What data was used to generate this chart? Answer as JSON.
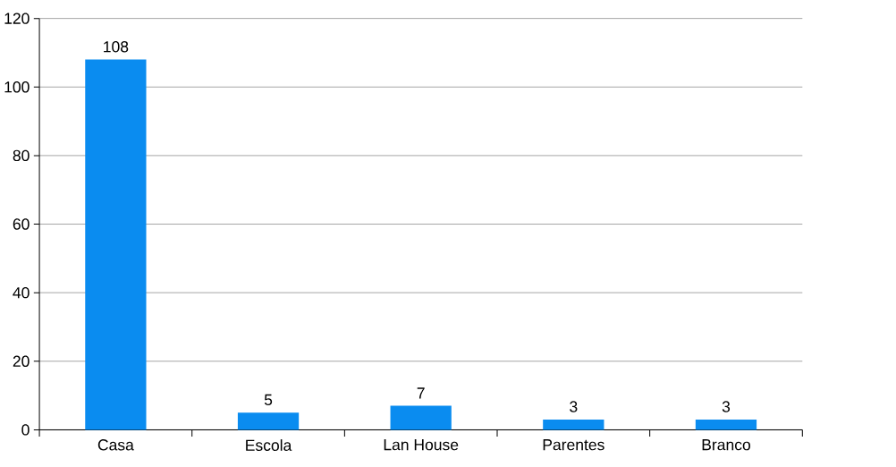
{
  "chart_data": {
    "type": "bar",
    "categories": [
      "Casa",
      "Escola",
      "Lan House",
      "Parentes",
      "Branco"
    ],
    "values": [
      108,
      5,
      7,
      3,
      3
    ],
    "color": "#0a8cf0",
    "ylim": [
      0,
      120
    ],
    "yticks": [
      0,
      20,
      40,
      60,
      80,
      100,
      120
    ],
    "grid": "y",
    "data_labels": true
  }
}
